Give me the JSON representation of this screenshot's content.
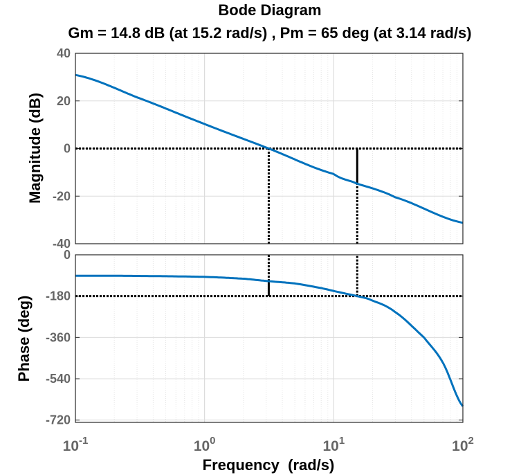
{
  "chart_data": [
    {
      "type": "line",
      "panel": "magnitude",
      "title": "Bode Diagram",
      "subtitle": "Gm = 14.8 dB (at 15.2 rad/s) ,  Pm = 65 deg (at 3.14 rad/s)",
      "ylabel": "Magnitude (dB)",
      "xscale": "log",
      "xlim": [
        0.1,
        100
      ],
      "ylim": [
        -40,
        40
      ],
      "yticks": [
        "40",
        "20",
        "0",
        "-20",
        "-40"
      ],
      "ytick_values": [
        40,
        20,
        0,
        -20,
        -40
      ],
      "grid": true,
      "series": [
        {
          "x": [
            0.1,
            0.3,
            1,
            3.14,
            10,
            15.2,
            30,
            100
          ],
          "y": [
            30.9,
            21.5,
            10.3,
            0,
            -10.7,
            -14.8,
            -20.5,
            -31.2
          ]
        }
      ],
      "reference_lines": [
        {
          "orientation": "horizontal",
          "y": 0,
          "style": "dotted"
        },
        {
          "orientation": "vertical",
          "x": 3.14,
          "from": -40,
          "to": 0,
          "style": "dotted"
        },
        {
          "orientation": "vertical",
          "x": 15.2,
          "from": -14.8,
          "to": 0,
          "style": "solid"
        },
        {
          "orientation": "vertical",
          "x": 15.2,
          "from": -40,
          "to": -14.8,
          "style": "dotted"
        }
      ],
      "line_color": "#0072bd"
    },
    {
      "type": "line",
      "panel": "phase",
      "ylabel": "Phase (deg)",
      "xlabel": "Frequency  (rad/s)",
      "xscale": "log",
      "xlim": [
        0.1,
        100
      ],
      "ylim": [
        -730,
        0
      ],
      "yticks": [
        "0",
        "-180",
        "-360",
        "-540",
        "-720"
      ],
      "ytick_values": [
        0,
        -180,
        -360,
        -540,
        -720
      ],
      "xticks": [
        {
          "base": "10",
          "exp": "-1",
          "value": 0.1
        },
        {
          "base": "10",
          "exp": "0",
          "value": 1
        },
        {
          "base": "10",
          "exp": "1",
          "value": 10
        },
        {
          "base": "10",
          "exp": "2",
          "value": 100
        }
      ],
      "grid": true,
      "series": [
        {
          "x": [
            0.1,
            0.3,
            1,
            2,
            3.14,
            5,
            8,
            12,
            15.2,
            20,
            30,
            50,
            70,
            100
          ],
          "y": [
            -91,
            -92,
            -96,
            -104,
            -115,
            -125,
            -145,
            -167,
            -180,
            -200,
            -250,
            -360,
            -470,
            -660
          ]
        }
      ],
      "reference_lines": [
        {
          "orientation": "horizontal",
          "y": -180,
          "style": "dotted"
        },
        {
          "orientation": "vertical",
          "x": 3.14,
          "from": -180,
          "to": -115,
          "style": "solid"
        },
        {
          "orientation": "vertical",
          "x": 3.14,
          "from": -115,
          "to": 0,
          "style": "dotted"
        },
        {
          "orientation": "vertical",
          "x": 15.2,
          "from": -180,
          "to": 0,
          "style": "dotted"
        }
      ],
      "line_color": "#0072bd"
    }
  ]
}
